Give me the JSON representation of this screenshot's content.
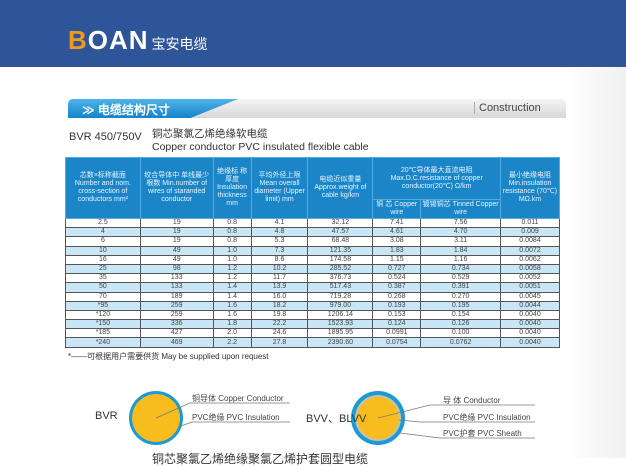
{
  "brand": {
    "logo_text": "BOAN",
    "cn_name": "宝安电缆"
  },
  "section": {
    "title_cn": "≫ 电缆结构尺寸",
    "title_en": "Construction"
  },
  "product": {
    "model": "BVR 450/750V",
    "name_cn": "铜芯聚氯乙烯绝缘软电缆",
    "name_en": "Copper conductor  PVC insulated flexible cable"
  },
  "table": {
    "headers": {
      "c1": "芯数×标称截面 Number and nom. cross-section of conductors mm²",
      "c2": "绞合导体中 单线最少根数 Min.number of wires of staranded conductor",
      "c3": "绝缘标 称厚度 Insulation thickness mm",
      "c4": "平均外径上限 Mean overall diameter (Upper limit) mm",
      "c5": "电缆近似重量 Approx.weight of cable kg/km",
      "c6": "20℃导体最大直流电阻 Max.D.C.resistance of copper conductor(20℃) Ω/km",
      "c6a": "铜 芯 Copper wire",
      "c6b": "镀锡铜芯 Tinned Copper wire",
      "c7": "最小绝缘电阻 Min.insulation resistance (70℃) MΩ.km"
    },
    "rows": [
      [
        "2.5",
        "19",
        "0.8",
        "4.1",
        "32.12",
        "7.41",
        "7.56",
        "0.011"
      ],
      [
        "4",
        "19",
        "0.8",
        "4.8",
        "47.57",
        "4.61",
        "4.70",
        "0.009"
      ],
      [
        "6",
        "19",
        "0.8",
        "5.3",
        "68.48",
        "3.08",
        "3.11",
        "0.0084"
      ],
      [
        "10",
        "49",
        "1.0",
        "7.3",
        "121.35",
        "1.83",
        "1.84",
        "0.0072"
      ],
      [
        "16",
        "49",
        "1.0",
        "8.6",
        "174.58",
        "1.15",
        "1.16",
        "0.0062"
      ],
      [
        "25",
        "98",
        "1.2",
        "10.2",
        "285.52",
        "0.727",
        "0.734",
        "0.0058"
      ],
      [
        "35",
        "133",
        "1.2",
        "11.7",
        "376.73",
        "0.524",
        "0.529",
        "0.0052"
      ],
      [
        "50",
        "133",
        "1.4",
        "13.9",
        "517.43",
        "0.387",
        "0.391",
        "0.0051"
      ],
      [
        "70",
        "189",
        "1.4",
        "16.0",
        "719.28",
        "0.268",
        "0.270",
        "0.0045"
      ],
      [
        "*95",
        "259",
        "1.6",
        "18.2",
        "979.00",
        "0.193",
        "0.195",
        "0.0044"
      ],
      [
        "*120",
        "259",
        "1.6",
        "19.8",
        "1206.14",
        "0.153",
        "0.154",
        "0.0040"
      ],
      [
        "*150",
        "336",
        "1.8",
        "22.2",
        "1523.93",
        "0.124",
        "0.126",
        "0.0040"
      ],
      [
        "*185",
        "427",
        "2.0",
        "24.6",
        "1895.95",
        "0.0991",
        "0.100",
        "0.0040"
      ],
      [
        "*240",
        "469",
        "2.2",
        "27.8",
        "2390.60",
        "0.0754",
        "0.0762",
        "0.0040"
      ]
    ]
  },
  "note": "*——可根据用户需要供货  May be supplied upon request",
  "diagram1": {
    "label": "BVR",
    "parts": [
      "铜导体    Copper Conductor",
      "PVC绝缘   PVC Insulation"
    ]
  },
  "diagram2": {
    "label": "BVV、BLVV",
    "parts": [
      "导  体     Conductor",
      "PVC绝缘   PVC Insulation",
      "PVC护套   PVC Sheath"
    ]
  },
  "next_title": "铜芯聚氯乙烯绝缘聚氯乙烯护套圆型电缆",
  "colors": {
    "header_band": "#2d5597",
    "table_header": "#1a86c8",
    "row_alt": "#c8e6f6",
    "conductor": "#f7bd1e",
    "insulation": "#1a9ad8"
  }
}
